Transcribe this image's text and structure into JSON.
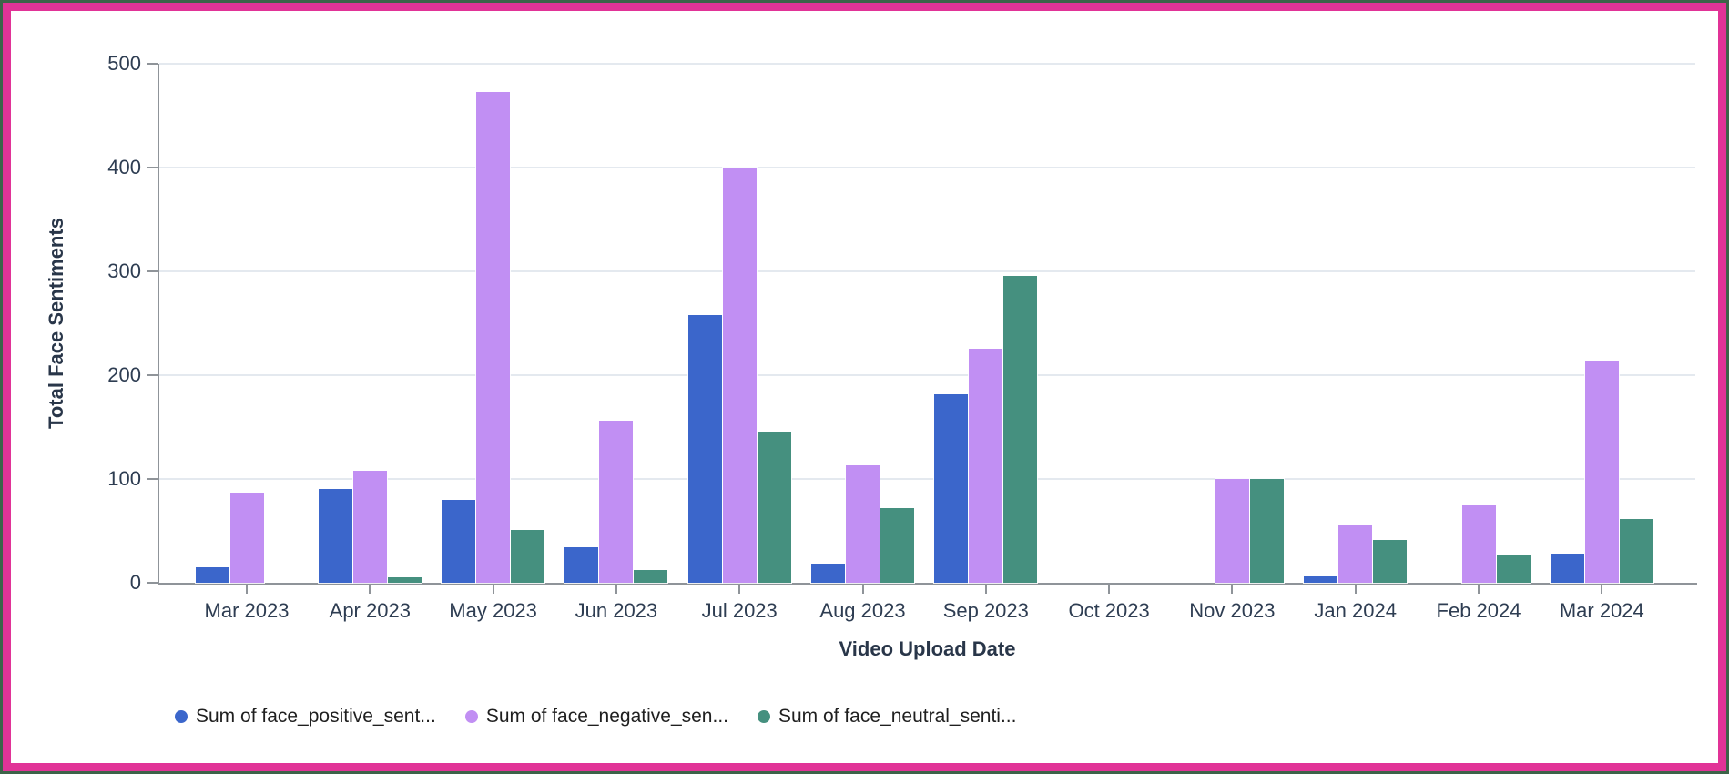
{
  "frame": {
    "outer_border_color": "#3d6349",
    "inner_border_color": "#e13397"
  },
  "theme": {
    "background": "#ffffff",
    "grid_color": "#e4e9ef",
    "axis_color": "#8f9499",
    "tick_label_color": "#2e3d52",
    "axis_title_color": "#293649",
    "legend_text_color": "#1f1f1f"
  },
  "chart_data": {
    "type": "bar",
    "title": "",
    "xlabel": "Video Upload Date",
    "ylabel": "Total Face Sentiments",
    "categories": [
      "Mar 2023",
      "Apr 2023",
      "May 2023",
      "Jun 2023",
      "Jul 2023",
      "Aug 2023",
      "Sep 2023",
      "Oct 2023",
      "Nov 2023",
      "Jan 2024",
      "Feb 2024",
      "Mar 2024"
    ],
    "series": [
      {
        "name": "Sum of face_positive_sent...",
        "color": "#3b66cb",
        "values": [
          15,
          90,
          80,
          34,
          258,
          18,
          182,
          0,
          0,
          6,
          0,
          28
        ]
      },
      {
        "name": "Sum of face_negative_sen...",
        "color": "#c18ff3",
        "values": [
          87,
          108,
          473,
          156,
          400,
          113,
          225,
          0,
          100,
          55,
          75,
          214
        ]
      },
      {
        "name": "Sum of face_neutral_senti...",
        "color": "#45907f",
        "values": [
          0,
          5,
          51,
          12,
          146,
          72,
          296,
          0,
          100,
          41,
          26,
          61
        ]
      }
    ],
    "ylim": [
      0,
      500
    ],
    "yticks": [
      0,
      100,
      200,
      300,
      400,
      500
    ],
    "grid": true,
    "legend_position": "bottom"
  }
}
